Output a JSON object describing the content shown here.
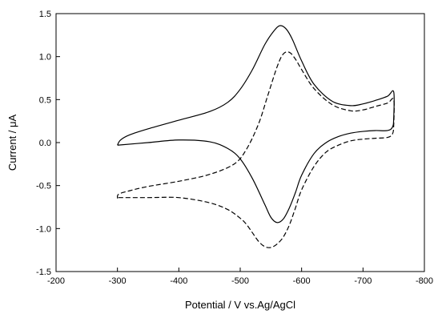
{
  "chart_data": {
    "type": "line",
    "title": "",
    "xlabel": "Potential / V vs.Ag/AgCl",
    "ylabel": "Current / μA",
    "xlim": [
      -200,
      -800
    ],
    "ylim": [
      -1.5,
      1.5
    ],
    "x_reversed": true,
    "grid": false,
    "legend": "none",
    "x_ticks": [
      {
        "value": -200,
        "label": "-200"
      },
      {
        "value": -300,
        "label": "-300"
      },
      {
        "value": -400,
        "label": "-400"
      },
      {
        "value": -500,
        "label": "-500"
      },
      {
        "value": -600,
        "label": "-600"
      },
      {
        "value": -700,
        "label": "-700"
      },
      {
        "value": -800,
        "label": "-800"
      }
    ],
    "y_ticks": [
      {
        "value": 1.5,
        "label": "1.5"
      },
      {
        "value": 1.0,
        "label": "1.0"
      },
      {
        "value": 0.5,
        "label": "0.5"
      },
      {
        "value": 0.0,
        "label": "0.0"
      },
      {
        "value": -0.5,
        "label": "-0.5"
      },
      {
        "value": -1.0,
        "label": "-1.0"
      },
      {
        "value": -1.5,
        "label": "-1.5"
      }
    ],
    "series": [
      {
        "style": "solid",
        "color": "#000000",
        "x": [
          -300,
          -305,
          -320,
          -350,
          -400,
          -450,
          -480,
          -500,
          -520,
          -540,
          -555,
          -565,
          -575,
          -585,
          -600,
          -620,
          -650,
          -680,
          -700,
          -720,
          -740,
          -750,
          -750,
          -748,
          -740,
          -720,
          -700,
          -680,
          -660,
          -640,
          -620,
          -600,
          -590,
          -580,
          -570,
          -560,
          -550,
          -540,
          -520,
          -500,
          -480,
          -450,
          -400,
          -350,
          -300
        ],
        "y": [
          -0.03,
          0.03,
          0.09,
          0.16,
          0.26,
          0.36,
          0.47,
          0.62,
          0.85,
          1.14,
          1.3,
          1.36,
          1.32,
          1.2,
          0.95,
          0.68,
          0.48,
          0.43,
          0.45,
          0.49,
          0.54,
          0.59,
          0.28,
          0.18,
          0.14,
          0.14,
          0.13,
          0.11,
          0.07,
          0.0,
          -0.13,
          -0.38,
          -0.58,
          -0.76,
          -0.89,
          -0.93,
          -0.87,
          -0.72,
          -0.42,
          -0.19,
          -0.07,
          0.01,
          0.03,
          0.0,
          -0.03
        ]
      },
      {
        "style": "dashed",
        "color": "#000000",
        "x": [
          -300,
          -302,
          -320,
          -350,
          -400,
          -450,
          -490,
          -510,
          -530,
          -545,
          -560,
          -570,
          -580,
          -590,
          -600,
          -620,
          -650,
          -680,
          -700,
          -720,
          -740,
          -750,
          -750,
          -748,
          -740,
          -720,
          -700,
          -680,
          -660,
          -640,
          -620,
          -600,
          -590,
          -580,
          -570,
          -560,
          -550,
          -540,
          -530,
          -520,
          -510,
          -500,
          -480,
          -450,
          -400,
          -350,
          -300
        ],
        "y": [
          -0.65,
          -0.6,
          -0.56,
          -0.51,
          -0.45,
          -0.37,
          -0.25,
          -0.08,
          0.22,
          0.55,
          0.88,
          1.03,
          1.05,
          0.97,
          0.85,
          0.63,
          0.44,
          0.37,
          0.38,
          0.42,
          0.46,
          0.5,
          0.2,
          0.1,
          0.06,
          0.05,
          0.04,
          0.02,
          -0.03,
          -0.11,
          -0.28,
          -0.55,
          -0.76,
          -0.96,
          -1.1,
          -1.18,
          -1.22,
          -1.21,
          -1.15,
          -1.05,
          -0.95,
          -0.88,
          -0.78,
          -0.7,
          -0.64,
          -0.64,
          -0.64
        ]
      }
    ]
  }
}
